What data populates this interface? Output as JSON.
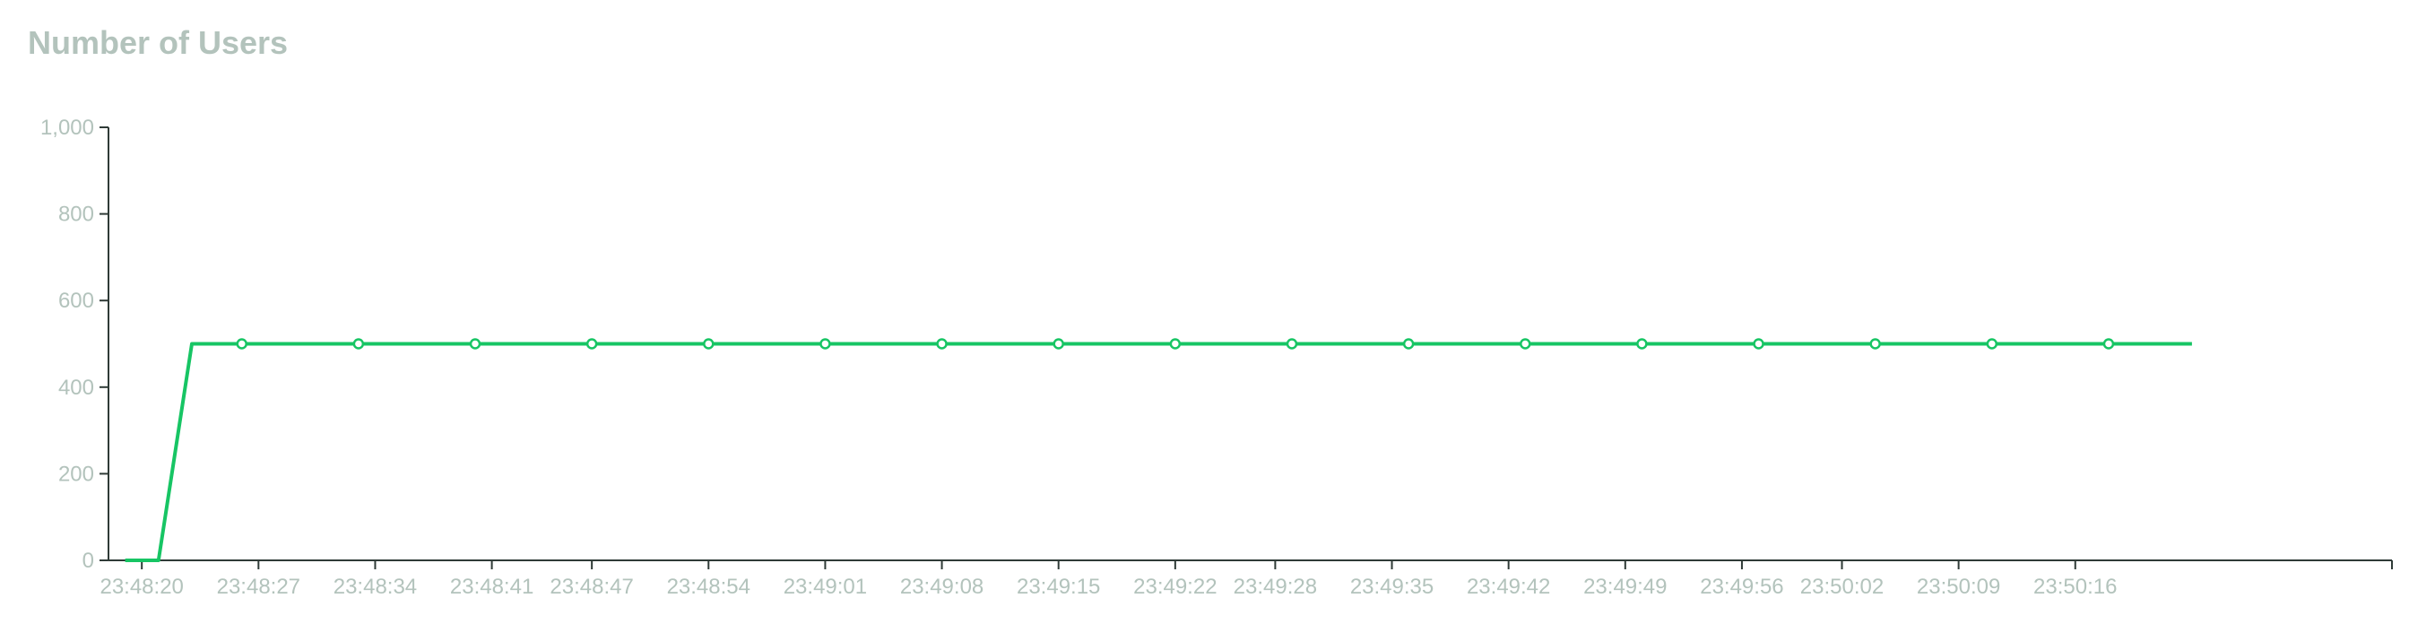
{
  "chart_data": {
    "type": "line",
    "title": "Number of Users",
    "xlabel": "",
    "ylabel": "",
    "ylim": [
      0,
      1000
    ],
    "yticks": [
      0,
      200,
      400,
      600,
      800,
      1000
    ],
    "ytick_labels": [
      "0",
      "200",
      "400",
      "600",
      "800",
      "1,000"
    ],
    "xlim": [
      "23:48:18",
      "23:50:35"
    ],
    "xtick_labels": [
      "23:48:20",
      "23:48:27",
      "23:48:34",
      "23:48:41",
      "23:48:47",
      "23:48:54",
      "23:49:01",
      "23:49:08",
      "23:49:15",
      "23:49:22",
      "23:49:28",
      "23:49:35",
      "23:49:42",
      "23:49:49",
      "23:49:56",
      "23:50:02",
      "23:50:09",
      "23:50:16"
    ],
    "grid": false,
    "legend": "none",
    "colors": {
      "line": "#17c564",
      "axis": "#2f3b37",
      "text": "#b3c3bc"
    },
    "series": [
      {
        "x": [
          "23:48:19",
          "23:48:21",
          "23:48:23",
          "23:48:26",
          "23:48:33",
          "23:48:40",
          "23:48:47",
          "23:48:54",
          "23:49:01",
          "23:49:08",
          "23:49:15",
          "23:49:22",
          "23:49:29",
          "23:49:36",
          "23:49:43",
          "23:49:50",
          "23:49:57",
          "23:50:04",
          "23:50:11",
          "23:50:18",
          "23:50:23"
        ],
        "values": [
          0,
          0,
          500,
          500,
          500,
          500,
          500,
          500,
          500,
          500,
          500,
          500,
          500,
          500,
          500,
          500,
          500,
          500,
          500,
          500,
          500
        ],
        "markers": [
          false,
          false,
          false,
          true,
          true,
          true,
          true,
          true,
          true,
          true,
          true,
          true,
          true,
          true,
          true,
          true,
          true,
          true,
          true,
          true,
          false
        ]
      }
    ]
  }
}
